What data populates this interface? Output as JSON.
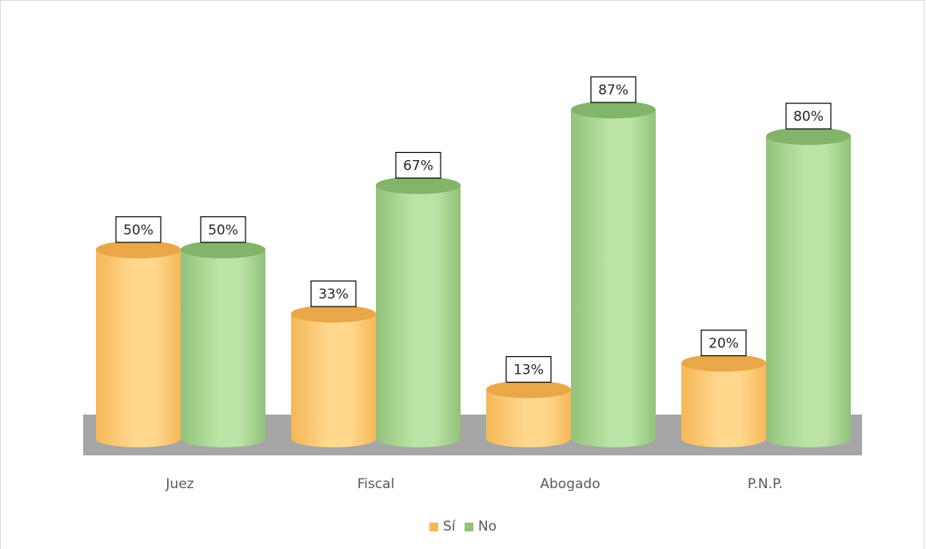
{
  "chart_data": {
    "type": "bar",
    "style": "3d-cylinder",
    "categories": [
      "Juez",
      "Fiscal",
      "Abogado",
      "P.N.P."
    ],
    "series": [
      {
        "name": "Sí",
        "values": [
          50,
          33,
          13,
          20
        ],
        "labels": [
          "50%",
          "33%",
          "13%",
          "20%"
        ],
        "color": "#F6B757",
        "light": "#FFD88E",
        "top": "#E9A748"
      },
      {
        "name": "No",
        "values": [
          50,
          67,
          87,
          80
        ],
        "labels": [
          "50%",
          "67%",
          "87%",
          "80%"
        ],
        "color": "#92C27A",
        "light": "#BCE3A6",
        "top": "#82B46A"
      }
    ],
    "ylim": [
      0,
      100
    ],
    "grid": false,
    "legend_position": "bottom",
    "floor_color": "#A6A6A6"
  }
}
